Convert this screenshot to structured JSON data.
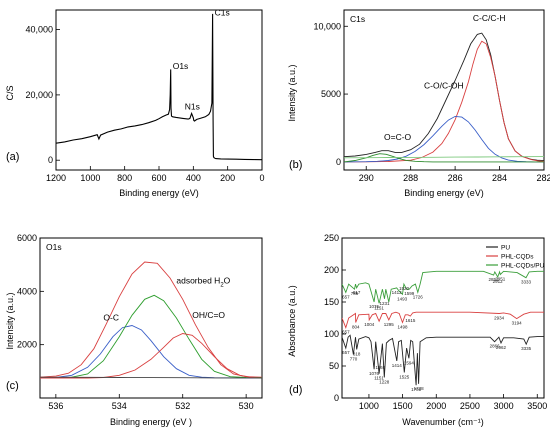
{
  "chart_data": [
    {
      "id": "a",
      "type": "line",
      "panel_label": "(a)",
      "xlabel": "Binding energy (eV)",
      "ylabel": "C/S",
      "xlim": [
        1200,
        0
      ],
      "ylim": [
        -3000,
        46000
      ],
      "x_ticks": [
        1200,
        1000,
        800,
        600,
        400,
        200,
        0
      ],
      "y_ticks": [
        0,
        20000,
        40000
      ],
      "y_tick_labels": [
        "0",
        "20,000",
        "40,000"
      ],
      "grid": false,
      "colors": {
        "line": "#000000"
      },
      "series": [
        {
          "x": [
            1200,
            1150,
            1100,
            1050,
            1000,
            960,
            950,
            940,
            900,
            860,
            820,
            780,
            740,
            700,
            660,
            620,
            600,
            580,
            560,
            545,
            538,
            535,
            532,
            530,
            527,
            520,
            500,
            460,
            430,
            420,
            410,
            400,
            397,
            393,
            380,
            360,
            330,
            310,
            300,
            292,
            288,
            285,
            283,
            280,
            275,
            270,
            260,
            240,
            200,
            150,
            100,
            50,
            0
          ],
          "y": [
            5200,
            5600,
            6200,
            6600,
            7200,
            7800,
            6500,
            7700,
            8600,
            9200,
            9600,
            10200,
            10500,
            10900,
            11500,
            12200,
            12700,
            13300,
            13800,
            14100,
            15500,
            20000,
            27800,
            16000,
            13500,
            13300,
            13100,
            12800,
            12600,
            12800,
            14300,
            13000,
            12200,
            12000,
            12500,
            12800,
            13300,
            14000,
            15000,
            17500,
            44800,
            12000,
            1200,
            800,
            600,
            500,
            450,
            400,
            350,
            300,
            250,
            200,
            150
          ]
        }
      ],
      "annotations": [
        {
          "text": "C1s",
          "x": 276,
          "y": 44300
        },
        {
          "text": "O1s",
          "x": 520,
          "y": 28000
        },
        {
          "text": "N1s",
          "x": 450,
          "y": 15600
        }
      ]
    },
    {
      "id": "b",
      "type": "line",
      "panel_label": "(b)",
      "title": "C1s",
      "xlabel": "Binding energy (eV)",
      "ylabel": "Intensity (a.u.)",
      "xlim": [
        291,
        282
      ],
      "ylim": [
        -600,
        11200
      ],
      "x_ticks": [
        290,
        288,
        286,
        284,
        282
      ],
      "y_ticks": [
        0,
        5000,
        10000
      ],
      "y_tick_labels": [
        "0",
        "5000",
        "10,000"
      ],
      "grid": false,
      "colors": {
        "envelope": "#222222",
        "c_c": "#d94040",
        "c_o": "#3a5fc8",
        "o_c_o": "#2e8b2e",
        "background": "#7ec97e"
      },
      "series": [
        {
          "key": "envelope",
          "x": [
            291,
            290.5,
            290,
            289.6,
            289.3,
            289,
            288.7,
            288.4,
            288,
            287.6,
            287.2,
            286.8,
            286.4,
            286,
            285.6,
            285.3,
            285,
            284.8,
            284.6,
            284.4,
            284.2,
            284,
            283.8,
            283.6,
            283.3,
            283,
            282.6,
            282.3,
            282
          ],
          "y": [
            380,
            430,
            550,
            700,
            820,
            820,
            700,
            700,
            900,
            1300,
            2100,
            3200,
            4600,
            6000,
            7500,
            8700,
            9400,
            9500,
            9000,
            7900,
            6300,
            4500,
            2900,
            1700,
            800,
            420,
            200,
            120,
            90
          ]
        },
        {
          "key": "c_c",
          "x": [
            291,
            290,
            289,
            288,
            287.5,
            287,
            286.6,
            286.3,
            286,
            285.7,
            285.4,
            285.2,
            285,
            284.8,
            284.6,
            284.4,
            284.2,
            284,
            283.8,
            283.6,
            283.3,
            283,
            282.6,
            282.3,
            282
          ],
          "y": [
            0,
            5,
            30,
            120,
            320,
            720,
            1350,
            2100,
            3100,
            4400,
            5900,
            7200,
            8300,
            8900,
            8700,
            7700,
            6300,
            4500,
            2900,
            1700,
            800,
            400,
            180,
            80,
            30
          ]
        },
        {
          "key": "c_o",
          "x": [
            291,
            290,
            289.5,
            289,
            288.6,
            288.2,
            287.8,
            287.4,
            287,
            286.6,
            286.3,
            286,
            285.7,
            285.4,
            285.1,
            284.8,
            284.5,
            284.2,
            283.9,
            283.6,
            283.2,
            282.8,
            282.4,
            282
          ],
          "y": [
            0,
            10,
            40,
            100,
            210,
            420,
            770,
            1270,
            1920,
            2620,
            3080,
            3350,
            3300,
            2950,
            2350,
            1650,
            1000,
            560,
            290,
            130,
            40,
            10,
            0,
            0
          ]
        },
        {
          "key": "o_c_o",
          "x": [
            291,
            290.5,
            290,
            289.7,
            289.4,
            289.1,
            288.8,
            288.5,
            288.2,
            287.8,
            287.4,
            287,
            286.5,
            286,
            285,
            284,
            283,
            282
          ],
          "y": [
            0,
            100,
            300,
            480,
            600,
            560,
            400,
            230,
            110,
            40,
            10,
            0,
            0,
            0,
            0,
            0,
            0,
            0
          ]
        },
        {
          "key": "background",
          "x": [
            291,
            290,
            289,
            288,
            287,
            286,
            285,
            284,
            283,
            282
          ],
          "y": [
            300,
            310,
            320,
            330,
            340,
            350,
            360,
            370,
            380,
            390
          ]
        }
      ],
      "annotations": [
        {
          "text": "C-C/C-H",
          "x": 285.2,
          "y": 10400
        },
        {
          "text": "C-O/C-OH",
          "x": 287.4,
          "y": 5400
        },
        {
          "text": "O=C-O",
          "x": 289.2,
          "y": 1600
        }
      ]
    },
    {
      "id": "c",
      "type": "line",
      "panel_label": "(c)",
      "title": "O1s",
      "xlabel": "Binding energy (eV )",
      "ylabel": "Intensity (a.u.)",
      "xlim": [
        536.5,
        529.5
      ],
      "ylim": [
        0,
        6000
      ],
      "x_ticks": [
        536,
        534,
        532,
        530
      ],
      "y_ticks": [
        2000,
        4000,
        6000
      ],
      "y_tick_labels": [
        "2000",
        "4000",
        "6000"
      ],
      "grid": false,
      "colors": {
        "envelope": "#d94040",
        "o_c": "#3a5fc8",
        "adsorbed": "#2e9e2e",
        "oh": "#d94040",
        "background": "#444444"
      },
      "series": [
        {
          "key": "envelope",
          "x": [
            536.5,
            536,
            535.6,
            535.2,
            534.8,
            534.4,
            534,
            533.6,
            533.2,
            532.8,
            532.4,
            532,
            531.6,
            531.2,
            530.8,
            530.4,
            530,
            529.5
          ],
          "y": [
            780,
            820,
            930,
            1250,
            1850,
            2800,
            3800,
            4650,
            5100,
            5050,
            4500,
            3700,
            2750,
            1900,
            1250,
            900,
            800,
            780
          ]
        },
        {
          "key": "o_c",
          "x": [
            536.5,
            536,
            535.5,
            535,
            534.6,
            534.2,
            533.9,
            533.6,
            533.3,
            533,
            532.6,
            532.2,
            531.8,
            531.4,
            531,
            530,
            529.5
          ],
          "y": [
            760,
            770,
            850,
            1150,
            1650,
            2300,
            2640,
            2720,
            2550,
            2150,
            1550,
            1100,
            850,
            780,
            760,
            750,
            750
          ]
        },
        {
          "key": "adsorbed",
          "x": [
            536.5,
            536,
            535.5,
            535,
            534.5,
            534,
            533.6,
            533.2,
            532.9,
            532.6,
            532.2,
            531.8,
            531.4,
            531,
            530.5,
            530,
            529.5
          ],
          "y": [
            760,
            760,
            780,
            900,
            1400,
            2300,
            3100,
            3700,
            3850,
            3650,
            3000,
            2200,
            1450,
            1000,
            800,
            770,
            760
          ]
        },
        {
          "key": "oh",
          "x": [
            536.5,
            535,
            534.5,
            534,
            533.5,
            533,
            532.6,
            532.3,
            532,
            531.7,
            531.4,
            531,
            530.6,
            530.2,
            529.8,
            529.5
          ],
          "y": [
            750,
            750,
            770,
            850,
            1050,
            1450,
            1900,
            2250,
            2420,
            2350,
            2050,
            1550,
            1100,
            850,
            770,
            750
          ]
        },
        {
          "key": "background",
          "x": [
            536.5,
            535,
            534,
            533,
            532,
            531,
            530,
            529.5
          ],
          "y": [
            780,
            775,
            770,
            765,
            760,
            755,
            752,
            750
          ]
        }
      ],
      "annotations": [
        {
          "text": "O-C",
          "x": 534.5,
          "y": 2900
        },
        {
          "text": "adsorbed H₂O",
          "x": 532.2,
          "y": 4300
        },
        {
          "text": "OH/C=O",
          "x": 531.7,
          "y": 3000
        }
      ]
    },
    {
      "id": "d",
      "type": "line",
      "panel_label": "(d)",
      "xlabel": "Wavenumber (cm⁻¹)",
      "ylabel": "Absorbance (a.u.)",
      "xlim": [
        600,
        3600
      ],
      "ylim": [
        0,
        250
      ],
      "x_ticks": [
        1000,
        1500,
        2000,
        2500,
        3000,
        3500
      ],
      "y_ticks": [
        0,
        50,
        100,
        150,
        200,
        250
      ],
      "grid": false,
      "legend": {
        "placement": "top-right",
        "entries": [
          "PU",
          "PHL-CQDs",
          "PHL-CQDs/PU"
        ]
      },
      "colors": {
        "PU": "#222222",
        "PHL-CQDs": "#d94040",
        "PHL-CQDs/PU": "#3a9e3a"
      },
      "series": [
        {
          "name": "PU",
          "x": [
            600,
            657,
            690,
            720,
            770,
            800,
            818,
            850,
            950,
            1000,
            1030,
            1076,
            1100,
            1151,
            1169,
            1200,
            1228,
            1260,
            1300,
            1350,
            1414,
            1440,
            1480,
            1525,
            1560,
            1594,
            1620,
            1650,
            1701,
            1720,
            1738,
            1760,
            1850,
            2000,
            2500,
            2800,
            2866,
            2930,
            2962,
            3000,
            3150,
            3300,
            3335,
            3380,
            3500,
            3600
          ],
          "y": [
            95,
            78,
            95,
            98,
            68,
            95,
            76,
            92,
            96,
            94,
            88,
            45,
            88,
            38,
            55,
            85,
            32,
            86,
            90,
            93,
            58,
            88,
            90,
            40,
            78,
            62,
            90,
            88,
            20,
            70,
            22,
            88,
            94,
            95,
            95,
            95,
            88,
            95,
            86,
            94,
            94,
            92,
            84,
            95,
            96,
            96
          ]
        },
        {
          "name": "PHL-CQDs",
          "x": [
            600,
            657,
            700,
            800,
            804,
            850,
            1000,
            1004,
            1050,
            1100,
            1151,
            1200,
            1250,
            1295,
            1340,
            1400,
            1450,
            1498,
            1540,
            1580,
            1615,
            1650,
            1700,
            1800,
            2000,
            2500,
            2934,
            3000,
            3100,
            3194,
            3300,
            3400,
            3600
          ],
          "y": [
            125,
            110,
            125,
            132,
            118,
            130,
            131,
            122,
            130,
            132,
            120,
            132,
            132,
            122,
            132,
            134,
            132,
            118,
            130,
            130,
            128,
            133,
            134,
            134,
            134,
            134,
            132,
            133,
            131,
            124,
            131,
            134,
            134
          ]
        },
        {
          "name": "PHL-CQDs/PU",
          "x": [
            600,
            657,
            700,
            785,
            800,
            817,
            850,
            950,
            1000,
            1076,
            1100,
            1151,
            1200,
            1231,
            1250,
            1295,
            1330,
            1412,
            1440,
            1498,
            1520,
            1560,
            1600,
            1640,
            1690,
            1726,
            1760,
            1800,
            2000,
            2500,
            2700,
            2851,
            2870,
            2912,
            2940,
            2951,
            3000,
            3100,
            3200,
            3333,
            3380,
            3500,
            3600
          ],
          "y": [
            178,
            165,
            178,
            170,
            178,
            172,
            178,
            180,
            178,
            150,
            170,
            148,
            170,
            155,
            170,
            150,
            170,
            172,
            168,
            162,
            178,
            170,
            170,
            175,
            178,
            165,
            178,
            196,
            198,
            198,
            198,
            192,
            197,
            189,
            197,
            193,
            198,
            197,
            196,
            188,
            197,
            198,
            198
          ]
        }
      ],
      "annotations_black": [
        "657",
        "770",
        "818",
        "1076",
        "1169",
        "1151",
        "1228",
        "1414",
        "1525",
        "1594",
        "1701",
        "1738",
        "2866",
        "2962",
        "3335"
      ],
      "annotations_red": [
        "657",
        "804",
        "1004",
        "1295",
        "1498",
        "1615",
        "2934",
        "3194"
      ],
      "annotations_green": [
        "657",
        "785",
        "817",
        "1076",
        "1151",
        "1231",
        "1412",
        "1520",
        "1493",
        "1726",
        "1599",
        "2851",
        "2912",
        "2951",
        "3333"
      ]
    }
  ]
}
